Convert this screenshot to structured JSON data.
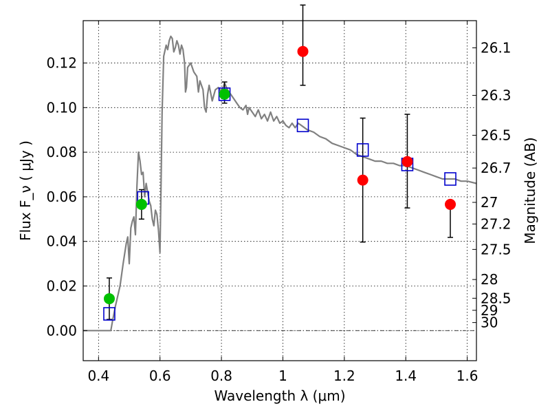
{
  "chart_data": {
    "type": "scatter",
    "title": "",
    "xlabel": "Wavelength  λ (μm)",
    "ylabel": "Flux  F_ν  ( μJy )",
    "y2label": "Magnitude (AB)",
    "xlim": [
      0.35,
      1.63
    ],
    "ylim": [
      -0.0135,
      0.139
    ],
    "grid": true,
    "x_ticks": [
      0.4,
      0.6,
      0.8,
      1.0,
      1.2,
      1.4,
      1.6
    ],
    "x_tick_labels": [
      "0.4",
      "0.6",
      "0.8",
      "1",
      "1.2",
      "1.4",
      "1.6"
    ],
    "y_ticks": [
      0.0,
      0.02,
      0.04,
      0.06,
      0.08,
      0.1,
      0.12
    ],
    "y_tick_labels": [
      "0.00",
      "0.02",
      "0.04",
      "0.06",
      "0.08",
      "0.10",
      "0.12"
    ],
    "y2_ticks": [
      {
        "label": "26.1",
        "flux": 0.1268
      },
      {
        "label": "26.3",
        "flux": 0.1055
      },
      {
        "label": "26.5",
        "flux": 0.0876
      },
      {
        "label": "26.7",
        "flux": 0.0729
      },
      {
        "label": "27",
        "flux": 0.0575
      },
      {
        "label": "27.2",
        "flux": 0.0478
      },
      {
        "label": "27.5",
        "flux": 0.0364
      },
      {
        "label": "28",
        "flux": 0.0229
      },
      {
        "label": "28.5",
        "flux": 0.0145
      },
      {
        "label": "29",
        "flux": 0.0091
      },
      {
        "label": "30",
        "flux": 0.0036
      }
    ],
    "series": [
      {
        "kind": "model-spectrum",
        "color": "#808080",
        "x": [
          0.35,
          0.44,
          0.445,
          0.455,
          0.47,
          0.48,
          0.49,
          0.495,
          0.5,
          0.505,
          0.51,
          0.515,
          0.52,
          0.525,
          0.53,
          0.535,
          0.54,
          0.545,
          0.55,
          0.555,
          0.56,
          0.565,
          0.57,
          0.575,
          0.58,
          0.585,
          0.59,
          0.595,
          0.6,
          0.603,
          0.607,
          0.612,
          0.62,
          0.625,
          0.63,
          0.635,
          0.64,
          0.645,
          0.65,
          0.655,
          0.66,
          0.665,
          0.67,
          0.675,
          0.68,
          0.683,
          0.686,
          0.69,
          0.7,
          0.71,
          0.72,
          0.725,
          0.73,
          0.74,
          0.745,
          0.75,
          0.755,
          0.76,
          0.77,
          0.78,
          0.79,
          0.8,
          0.81,
          0.82,
          0.83,
          0.84,
          0.85,
          0.86,
          0.87,
          0.88,
          0.885,
          0.89,
          0.9,
          0.91,
          0.92,
          0.93,
          0.94,
          0.95,
          0.96,
          0.97,
          0.98,
          0.99,
          1.0,
          1.01,
          1.02,
          1.03,
          1.04,
          1.05,
          1.06,
          1.08,
          1.1,
          1.12,
          1.14,
          1.16,
          1.18,
          1.2,
          1.22,
          1.24,
          1.26,
          1.28,
          1.3,
          1.32,
          1.34,
          1.36,
          1.38,
          1.4,
          1.42,
          1.44,
          1.46,
          1.48,
          1.5,
          1.52,
          1.54,
          1.56,
          1.58,
          1.6,
          1.63
        ],
        "y": [
          0.0,
          0.0,
          0.004,
          0.011,
          0.02,
          0.03,
          0.039,
          0.042,
          0.03,
          0.046,
          0.049,
          0.051,
          0.043,
          0.065,
          0.08,
          0.076,
          0.07,
          0.071,
          0.06,
          0.066,
          0.062,
          0.058,
          0.056,
          0.05,
          0.047,
          0.054,
          0.052,
          0.045,
          0.035,
          0.062,
          0.098,
          0.123,
          0.128,
          0.126,
          0.13,
          0.132,
          0.131,
          0.125,
          0.127,
          0.13,
          0.128,
          0.124,
          0.128,
          0.126,
          0.12,
          0.107,
          0.109,
          0.118,
          0.12,
          0.116,
          0.114,
          0.107,
          0.112,
          0.108,
          0.1,
          0.098,
          0.106,
          0.11,
          0.103,
          0.108,
          0.109,
          0.107,
          0.111,
          0.108,
          0.106,
          0.104,
          0.102,
          0.1,
          0.099,
          0.101,
          0.097,
          0.1,
          0.098,
          0.096,
          0.099,
          0.095,
          0.097,
          0.094,
          0.098,
          0.094,
          0.096,
          0.093,
          0.094,
          0.092,
          0.091,
          0.093,
          0.091,
          0.093,
          0.092,
          0.09,
          0.089,
          0.087,
          0.086,
          0.084,
          0.083,
          0.082,
          0.081,
          0.079,
          0.078,
          0.077,
          0.076,
          0.076,
          0.075,
          0.075,
          0.074,
          0.074,
          0.073,
          0.072,
          0.071,
          0.07,
          0.069,
          0.068,
          0.068,
          0.068,
          0.067,
          0.067,
          0.066
        ]
      },
      {
        "kind": "model-photometry",
        "color": "#0000cc",
        "marker": "open-square",
        "x": [
          0.435,
          0.545,
          0.81,
          1.065,
          1.26,
          1.405,
          1.545
        ],
        "y": [
          0.0075,
          0.0595,
          0.106,
          0.092,
          0.081,
          0.0745,
          0.068
        ]
      },
      {
        "kind": "detections",
        "color": "#00c000",
        "marker": "filled-circle",
        "x": [
          0.435,
          0.54,
          0.81
        ],
        "y": [
          0.0143,
          0.0566,
          0.106
        ],
        "err_low": [
          0.0093,
          0.0066,
          0.004
        ],
        "err_high": [
          0.0093,
          0.0066,
          0.0055
        ]
      },
      {
        "kind": "upper-limits",
        "color": "#ff0000",
        "marker": "filled-circle",
        "x": [
          1.065,
          1.26,
          1.405,
          1.545
        ],
        "y": [
          0.1252,
          0.0675,
          0.0758,
          0.0566
        ],
        "err_low": [
          0.0152,
          0.0278,
          0.0208,
          0.0148
        ],
        "err_high": [
          0.0208,
          0.0278,
          0.0212,
          0.0
        ]
      }
    ]
  }
}
